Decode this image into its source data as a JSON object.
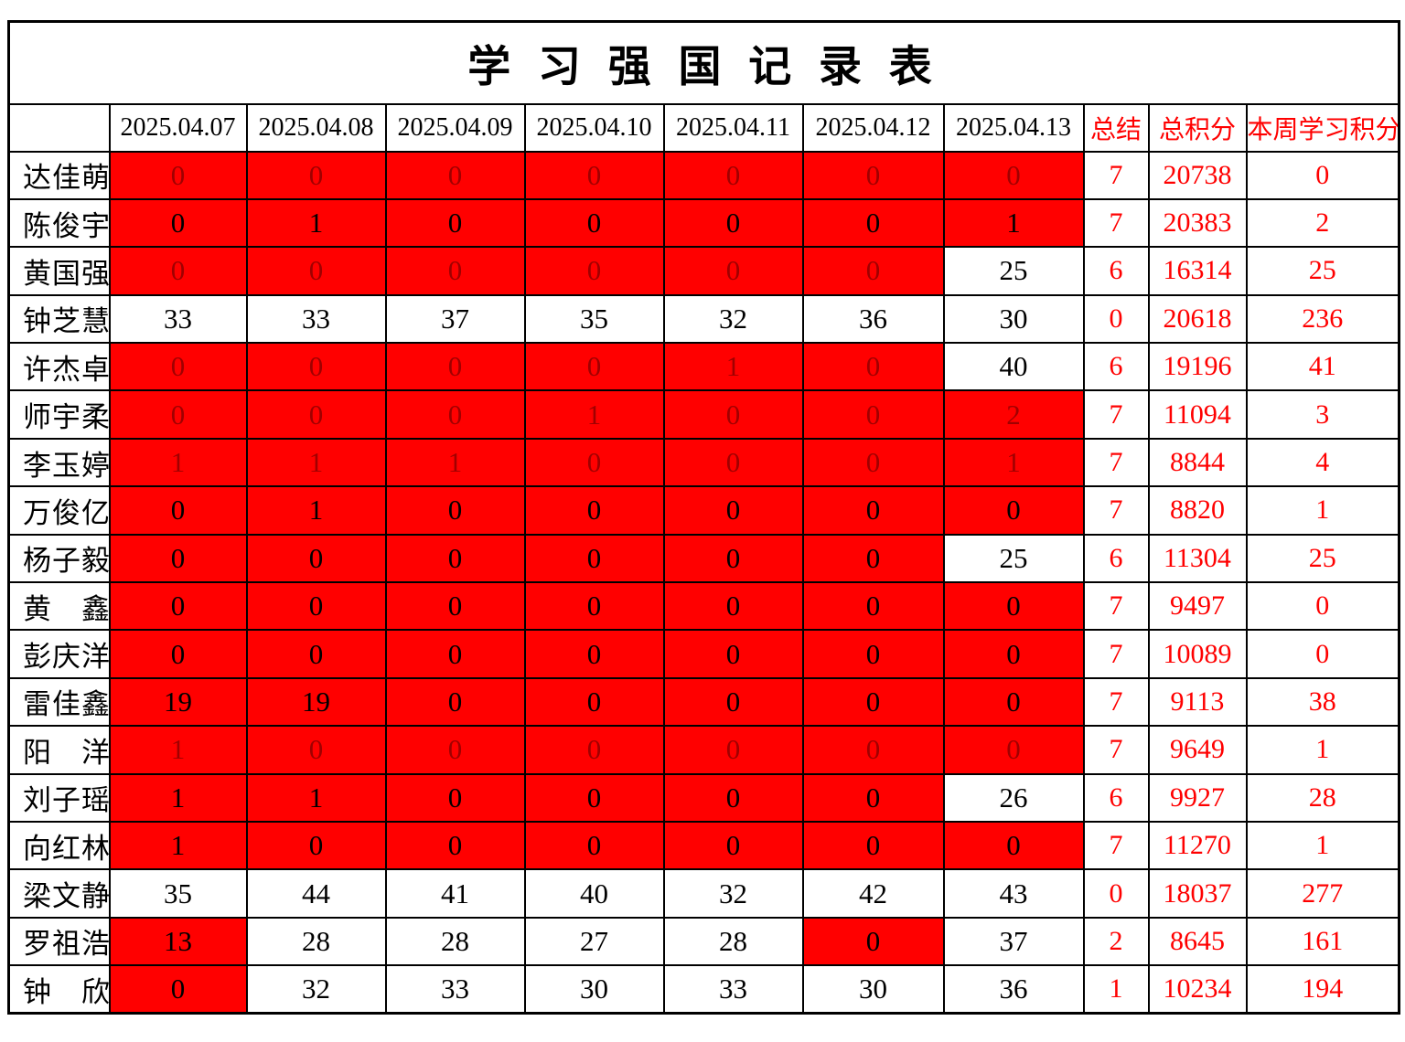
{
  "title": "学 习 强 国 记 录 表",
  "header": {
    "corner": "",
    "dates": [
      "2025.04.07",
      "2025.04.08",
      "2025.04.09",
      "2025.04.10",
      "2025.04.11",
      "2025.04.12",
      "2025.04.13"
    ],
    "summary_cols": [
      "总结",
      "总积分",
      "本周学习积分"
    ]
  },
  "colors": {
    "highlight_bg": "#ff0000",
    "muted_value_text": "#a00000",
    "value_text": "#000000",
    "summary_text": "#ff0000",
    "border": "#000000"
  },
  "rows": [
    {
      "name": "达佳萌",
      "days": [
        {
          "v": "0",
          "bg": "red",
          "fg": "dark"
        },
        {
          "v": "0",
          "bg": "red",
          "fg": "dark"
        },
        {
          "v": "0",
          "bg": "red",
          "fg": "dark"
        },
        {
          "v": "0",
          "bg": "red",
          "fg": "dark"
        },
        {
          "v": "0",
          "bg": "red",
          "fg": "dark"
        },
        {
          "v": "0",
          "bg": "red",
          "fg": "dark"
        },
        {
          "v": "0",
          "bg": "red",
          "fg": "dark"
        }
      ],
      "summary": "7",
      "total": "20738",
      "week": "0"
    },
    {
      "name": "陈俊宇",
      "days": [
        {
          "v": "0",
          "bg": "red",
          "fg": "black"
        },
        {
          "v": "1",
          "bg": "red",
          "fg": "black"
        },
        {
          "v": "0",
          "bg": "red",
          "fg": "black"
        },
        {
          "v": "0",
          "bg": "red",
          "fg": "black"
        },
        {
          "v": "0",
          "bg": "red",
          "fg": "black"
        },
        {
          "v": "0",
          "bg": "red",
          "fg": "black"
        },
        {
          "v": "1",
          "bg": "red",
          "fg": "black"
        }
      ],
      "summary": "7",
      "total": "20383",
      "week": "2"
    },
    {
      "name": "黄国强",
      "days": [
        {
          "v": "0",
          "bg": "red",
          "fg": "dark"
        },
        {
          "v": "0",
          "bg": "red",
          "fg": "dark"
        },
        {
          "v": "0",
          "bg": "red",
          "fg": "dark"
        },
        {
          "v": "0",
          "bg": "red",
          "fg": "dark"
        },
        {
          "v": "0",
          "bg": "red",
          "fg": "dark"
        },
        {
          "v": "0",
          "bg": "red",
          "fg": "dark"
        },
        {
          "v": "25",
          "bg": "white",
          "fg": "black"
        }
      ],
      "summary": "6",
      "total": "16314",
      "week": "25"
    },
    {
      "name": "钟芝慧",
      "days": [
        {
          "v": "33",
          "bg": "white",
          "fg": "black"
        },
        {
          "v": "33",
          "bg": "white",
          "fg": "black"
        },
        {
          "v": "37",
          "bg": "white",
          "fg": "black"
        },
        {
          "v": "35",
          "bg": "white",
          "fg": "black"
        },
        {
          "v": "32",
          "bg": "white",
          "fg": "black"
        },
        {
          "v": "36",
          "bg": "white",
          "fg": "black"
        },
        {
          "v": "30",
          "bg": "white",
          "fg": "black"
        }
      ],
      "summary": "0",
      "total": "20618",
      "week": "236"
    },
    {
      "name": "许杰卓",
      "days": [
        {
          "v": "0",
          "bg": "red",
          "fg": "dark"
        },
        {
          "v": "0",
          "bg": "red",
          "fg": "dark"
        },
        {
          "v": "0",
          "bg": "red",
          "fg": "dark"
        },
        {
          "v": "0",
          "bg": "red",
          "fg": "dark"
        },
        {
          "v": "1",
          "bg": "red",
          "fg": "dark"
        },
        {
          "v": "0",
          "bg": "red",
          "fg": "dark"
        },
        {
          "v": "40",
          "bg": "white",
          "fg": "black"
        }
      ],
      "summary": "6",
      "total": "19196",
      "week": "41"
    },
    {
      "name": "师宇柔",
      "days": [
        {
          "v": "0",
          "bg": "red",
          "fg": "dark"
        },
        {
          "v": "0",
          "bg": "red",
          "fg": "dark"
        },
        {
          "v": "0",
          "bg": "red",
          "fg": "dark"
        },
        {
          "v": "1",
          "bg": "red",
          "fg": "dark"
        },
        {
          "v": "0",
          "bg": "red",
          "fg": "dark"
        },
        {
          "v": "0",
          "bg": "red",
          "fg": "dark"
        },
        {
          "v": "2",
          "bg": "red",
          "fg": "dark"
        }
      ],
      "summary": "7",
      "total": "11094",
      "week": "3"
    },
    {
      "name": "李玉婷",
      "days": [
        {
          "v": "1",
          "bg": "red",
          "fg": "dark"
        },
        {
          "v": "1",
          "bg": "red",
          "fg": "dark"
        },
        {
          "v": "1",
          "bg": "red",
          "fg": "dark"
        },
        {
          "v": "0",
          "bg": "red",
          "fg": "dark"
        },
        {
          "v": "0",
          "bg": "red",
          "fg": "dark"
        },
        {
          "v": "0",
          "bg": "red",
          "fg": "dark"
        },
        {
          "v": "1",
          "bg": "red",
          "fg": "dark"
        }
      ],
      "summary": "7",
      "total": "8844",
      "week": "4"
    },
    {
      "name": "万俊亿",
      "days": [
        {
          "v": "0",
          "bg": "red",
          "fg": "black"
        },
        {
          "v": "1",
          "bg": "red",
          "fg": "black"
        },
        {
          "v": "0",
          "bg": "red",
          "fg": "black"
        },
        {
          "v": "0",
          "bg": "red",
          "fg": "black"
        },
        {
          "v": "0",
          "bg": "red",
          "fg": "black"
        },
        {
          "v": "0",
          "bg": "red",
          "fg": "black"
        },
        {
          "v": "0",
          "bg": "red",
          "fg": "black"
        }
      ],
      "summary": "7",
      "total": "8820",
      "week": "1"
    },
    {
      "name": "杨子毅",
      "days": [
        {
          "v": "0",
          "bg": "red",
          "fg": "black"
        },
        {
          "v": "0",
          "bg": "red",
          "fg": "black"
        },
        {
          "v": "0",
          "bg": "red",
          "fg": "black"
        },
        {
          "v": "0",
          "bg": "red",
          "fg": "black"
        },
        {
          "v": "0",
          "bg": "red",
          "fg": "black"
        },
        {
          "v": "0",
          "bg": "red",
          "fg": "black"
        },
        {
          "v": "25",
          "bg": "white",
          "fg": "black"
        }
      ],
      "summary": "6",
      "total": "11304",
      "week": "25"
    },
    {
      "name": "黄　鑫",
      "days": [
        {
          "v": "0",
          "bg": "red",
          "fg": "black"
        },
        {
          "v": "0",
          "bg": "red",
          "fg": "black"
        },
        {
          "v": "0",
          "bg": "red",
          "fg": "black"
        },
        {
          "v": "0",
          "bg": "red",
          "fg": "black"
        },
        {
          "v": "0",
          "bg": "red",
          "fg": "black"
        },
        {
          "v": "0",
          "bg": "red",
          "fg": "black"
        },
        {
          "v": "0",
          "bg": "red",
          "fg": "black"
        }
      ],
      "summary": "7",
      "total": "9497",
      "week": "0"
    },
    {
      "name": "彭庆洋",
      "days": [
        {
          "v": "0",
          "bg": "red",
          "fg": "black"
        },
        {
          "v": "0",
          "bg": "red",
          "fg": "black"
        },
        {
          "v": "0",
          "bg": "red",
          "fg": "black"
        },
        {
          "v": "0",
          "bg": "red",
          "fg": "black"
        },
        {
          "v": "0",
          "bg": "red",
          "fg": "black"
        },
        {
          "v": "0",
          "bg": "red",
          "fg": "black"
        },
        {
          "v": "0",
          "bg": "red",
          "fg": "black"
        }
      ],
      "summary": "7",
      "total": "10089",
      "week": "0"
    },
    {
      "name": "雷佳鑫",
      "days": [
        {
          "v": "19",
          "bg": "red",
          "fg": "black"
        },
        {
          "v": "19",
          "bg": "red",
          "fg": "black"
        },
        {
          "v": "0",
          "bg": "red",
          "fg": "black"
        },
        {
          "v": "0",
          "bg": "red",
          "fg": "black"
        },
        {
          "v": "0",
          "bg": "red",
          "fg": "black"
        },
        {
          "v": "0",
          "bg": "red",
          "fg": "black"
        },
        {
          "v": "0",
          "bg": "red",
          "fg": "black"
        }
      ],
      "summary": "7",
      "total": "9113",
      "week": "38"
    },
    {
      "name": "阳　洋",
      "days": [
        {
          "v": "1",
          "bg": "red",
          "fg": "dark"
        },
        {
          "v": "0",
          "bg": "red",
          "fg": "dark"
        },
        {
          "v": "0",
          "bg": "red",
          "fg": "dark"
        },
        {
          "v": "0",
          "bg": "red",
          "fg": "dark"
        },
        {
          "v": "0",
          "bg": "red",
          "fg": "dark"
        },
        {
          "v": "0",
          "bg": "red",
          "fg": "dark"
        },
        {
          "v": "0",
          "bg": "red",
          "fg": "dark"
        }
      ],
      "summary": "7",
      "total": "9649",
      "week": "1"
    },
    {
      "name": "刘子瑶",
      "days": [
        {
          "v": "1",
          "bg": "red",
          "fg": "black"
        },
        {
          "v": "1",
          "bg": "red",
          "fg": "black"
        },
        {
          "v": "0",
          "bg": "red",
          "fg": "black"
        },
        {
          "v": "0",
          "bg": "red",
          "fg": "black"
        },
        {
          "v": "0",
          "bg": "red",
          "fg": "black"
        },
        {
          "v": "0",
          "bg": "red",
          "fg": "black"
        },
        {
          "v": "26",
          "bg": "white",
          "fg": "black"
        }
      ],
      "summary": "6",
      "total": "9927",
      "week": "28"
    },
    {
      "name": "向红林",
      "days": [
        {
          "v": "1",
          "bg": "red",
          "fg": "black"
        },
        {
          "v": "0",
          "bg": "red",
          "fg": "black"
        },
        {
          "v": "0",
          "bg": "red",
          "fg": "black"
        },
        {
          "v": "0",
          "bg": "red",
          "fg": "black"
        },
        {
          "v": "0",
          "bg": "red",
          "fg": "black"
        },
        {
          "v": "0",
          "bg": "red",
          "fg": "black"
        },
        {
          "v": "0",
          "bg": "red",
          "fg": "black"
        }
      ],
      "summary": "7",
      "total": "11270",
      "week": "1"
    },
    {
      "name": "梁文静",
      "days": [
        {
          "v": "35",
          "bg": "white",
          "fg": "black"
        },
        {
          "v": "44",
          "bg": "white",
          "fg": "black"
        },
        {
          "v": "41",
          "bg": "white",
          "fg": "black"
        },
        {
          "v": "40",
          "bg": "white",
          "fg": "black"
        },
        {
          "v": "32",
          "bg": "white",
          "fg": "black"
        },
        {
          "v": "42",
          "bg": "white",
          "fg": "black"
        },
        {
          "v": "43",
          "bg": "white",
          "fg": "black"
        }
      ],
      "summary": "0",
      "total": "18037",
      "week": "277"
    },
    {
      "name": "罗祖浩",
      "days": [
        {
          "v": "13",
          "bg": "red",
          "fg": "black"
        },
        {
          "v": "28",
          "bg": "white",
          "fg": "black"
        },
        {
          "v": "28",
          "bg": "white",
          "fg": "black"
        },
        {
          "v": "27",
          "bg": "white",
          "fg": "black"
        },
        {
          "v": "28",
          "bg": "white",
          "fg": "black"
        },
        {
          "v": "0",
          "bg": "red",
          "fg": "black"
        },
        {
          "v": "37",
          "bg": "white",
          "fg": "black"
        }
      ],
      "summary": "2",
      "total": "8645",
      "week": "161"
    },
    {
      "name": "钟　欣",
      "days": [
        {
          "v": "0",
          "bg": "red",
          "fg": "black"
        },
        {
          "v": "32",
          "bg": "white",
          "fg": "black"
        },
        {
          "v": "33",
          "bg": "white",
          "fg": "black"
        },
        {
          "v": "30",
          "bg": "white",
          "fg": "black"
        },
        {
          "v": "33",
          "bg": "white",
          "fg": "black"
        },
        {
          "v": "30",
          "bg": "white",
          "fg": "black"
        },
        {
          "v": "36",
          "bg": "white",
          "fg": "black"
        }
      ],
      "summary": "1",
      "total": "10234",
      "week": "194"
    }
  ]
}
